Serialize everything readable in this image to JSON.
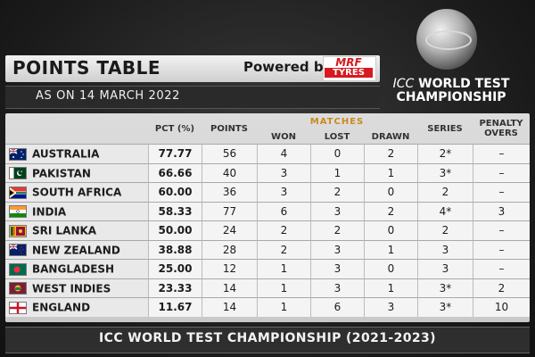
{
  "header": {
    "title": "POINTS TABLE",
    "powered_by": "Powered by",
    "sponsor_top": "MRF",
    "sponsor_bottom": "TYRES",
    "date": "AS ON 14 MARCH 2022"
  },
  "logo": {
    "line1_prefix": "ICC",
    "line1_rest": "WORLD TEST",
    "line2": "CHAMPIONSHIP"
  },
  "table": {
    "headers": {
      "pct": "PCT (%)",
      "points": "POINTS",
      "matches": "MATCHES",
      "won": "WON",
      "lost": "LOST",
      "drawn": "DRAWN",
      "series": "SERIES",
      "penalty_line1": "PENALTY",
      "penalty_line2": "OVERS"
    },
    "rows": [
      {
        "team": "AUSTRALIA",
        "flag": "australia",
        "pct": "77.77",
        "points": "56",
        "won": "4",
        "lost": "0",
        "drawn": "2",
        "series": "2*",
        "penalty": "–"
      },
      {
        "team": "PAKISTAN",
        "flag": "pakistan",
        "pct": "66.66",
        "points": "40",
        "won": "3",
        "lost": "1",
        "drawn": "1",
        "series": "3*",
        "penalty": "–"
      },
      {
        "team": "SOUTH AFRICA",
        "flag": "south-africa",
        "pct": "60.00",
        "points": "36",
        "won": "3",
        "lost": "2",
        "drawn": "0",
        "series": "2",
        "penalty": "–"
      },
      {
        "team": "INDIA",
        "flag": "india",
        "pct": "58.33",
        "points": "77",
        "won": "6",
        "lost": "3",
        "drawn": "2",
        "series": "4*",
        "penalty": "3"
      },
      {
        "team": "SRI LANKA",
        "flag": "sri-lanka",
        "pct": "50.00",
        "points": "24",
        "won": "2",
        "lost": "2",
        "drawn": "0",
        "series": "2",
        "penalty": "–"
      },
      {
        "team": "NEW ZEALAND",
        "flag": "new-zealand",
        "pct": "38.88",
        "points": "28",
        "won": "2",
        "lost": "3",
        "drawn": "1",
        "series": "3",
        "penalty": "–"
      },
      {
        "team": "BANGLADESH",
        "flag": "bangladesh",
        "pct": "25.00",
        "points": "12",
        "won": "1",
        "lost": "3",
        "drawn": "0",
        "series": "3",
        "penalty": "–"
      },
      {
        "team": "WEST INDIES",
        "flag": "west-indies",
        "pct": "23.33",
        "points": "14",
        "won": "1",
        "lost": "3",
        "drawn": "1",
        "series": "3*",
        "penalty": "2"
      },
      {
        "team": "ENGLAND",
        "flag": "england",
        "pct": "11.67",
        "points": "14",
        "won": "1",
        "lost": "6",
        "drawn": "3",
        "series": "3*",
        "penalty": "10"
      }
    ]
  },
  "footer": {
    "text": "ICC WORLD TEST CHAMPIONSHIP (2021-2023)"
  }
}
